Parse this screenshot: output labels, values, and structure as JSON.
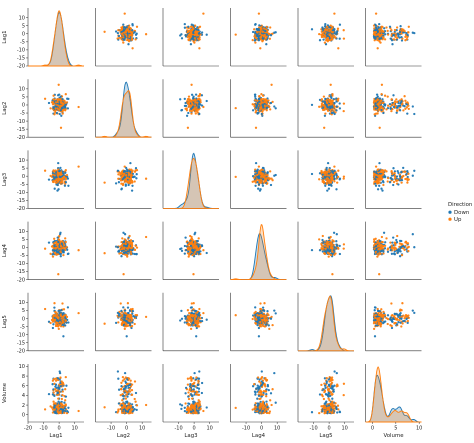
{
  "chart_data": {
    "type": "scatter",
    "variables": [
      "Lag1",
      "Lag2",
      "Lag3",
      "Lag4",
      "Lag5",
      "Volume"
    ],
    "axes": {
      "Lag1": {
        "range": [
          -20,
          16
        ],
        "ticks": [
          -20,
          -15,
          -10,
          -5,
          0,
          5,
          10
        ],
        "xticks": [
          -20,
          -10,
          0,
          10
        ]
      },
      "Lag2": {
        "range": [
          -20,
          16
        ],
        "ticks": [
          -20,
          -15,
          -10,
          -5,
          0,
          5,
          10
        ],
        "xticks": [
          -10,
          0,
          10
        ]
      },
      "Lag3": {
        "range": [
          -20,
          16
        ],
        "ticks": [
          -20,
          -15,
          -10,
          -5,
          0,
          5,
          10
        ],
        "xticks": [
          -10,
          0,
          10
        ]
      },
      "Lag4": {
        "range": [
          -20,
          16
        ],
        "ticks": [
          -20,
          -15,
          -10,
          -5,
          0,
          5,
          10
        ],
        "xticks": [
          -10,
          0,
          10
        ]
      },
      "Lag5": {
        "range": [
          -20,
          16
        ],
        "ticks": [
          -20,
          -15,
          -10,
          -5,
          0,
          5,
          10
        ],
        "xticks": [
          -10,
          0,
          10
        ]
      },
      "Volume": {
        "range": [
          -1.5,
          10.5
        ],
        "ticks": [
          0,
          2,
          4,
          6,
          8,
          10
        ],
        "xticks": [
          0,
          5,
          10
        ]
      }
    },
    "legend": {
      "title": "Direction",
      "entries": [
        "Down",
        "Up"
      ],
      "placement": "right"
    },
    "colors": {
      "Down": "#1f77b4",
      "Up": "#ff7f0e"
    },
    "diagonal": "kde",
    "grid": false
  }
}
